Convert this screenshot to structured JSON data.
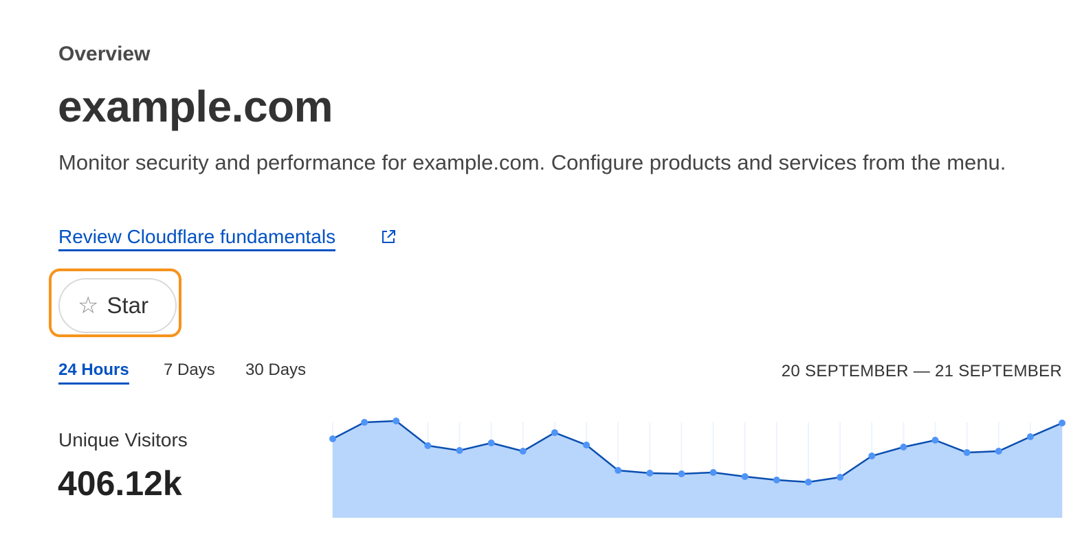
{
  "header": {
    "eyebrow": "Overview",
    "title": "example.com",
    "description": "Monitor security and performance for example.com. Configure products and services from the menu.",
    "link_label": "Review Cloudflare fundamentals",
    "link_icon": "external-link-icon",
    "star_label": "Star",
    "star_icon": "star-outline-icon"
  },
  "time_tabs": [
    {
      "label": "24 Hours",
      "active": true
    },
    {
      "label": "7 Days",
      "active": false
    },
    {
      "label": "30 Days",
      "active": false
    }
  ],
  "date_range": "20 SEPTEMBER — 21 SEPTEMBER",
  "metric": {
    "label": "Unique Visitors",
    "value": "406.12k"
  },
  "colors": {
    "accent": "#0051c3",
    "focus_ring": "#f6931d",
    "area_fill": "#b8d5fb",
    "line": "#0a4fb0",
    "point": "#4f94f7"
  },
  "chart_data": {
    "type": "area",
    "values": [
      115,
      139,
      141,
      105,
      98,
      109,
      97,
      124,
      106,
      69,
      65,
      64,
      66,
      60,
      55,
      52,
      59,
      90,
      103,
      113,
      95,
      97,
      118,
      138
    ],
    "ylim": [
      0,
      150
    ],
    "grid": "vertical",
    "legend": "none"
  }
}
